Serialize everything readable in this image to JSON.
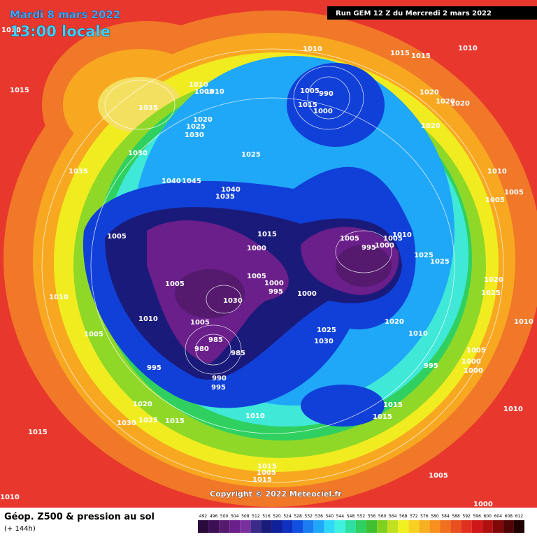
{
  "header": {
    "date": "Mardi 8 mars 2022",
    "time": "13:00 locale",
    "run": "Run GEM 12 Z du Mercredi 2 mars 2022"
  },
  "footer": {
    "title": "Géop. Z500 & pression au sol",
    "lead": "(+ 144h)",
    "copyright": "Copyright © 2022 Meteociel.fr"
  },
  "scale": {
    "labels": [
      492,
      496,
      500,
      504,
      508,
      512,
      516,
      520,
      524,
      528,
      532,
      536,
      540,
      544,
      548,
      552,
      556,
      560,
      564,
      568,
      572,
      576,
      580,
      584,
      588,
      592,
      596,
      600,
      604,
      608,
      612
    ],
    "colors": [
      "#2a0a3a",
      "#3c0f55",
      "#551a6e",
      "#6a1f8a",
      "#7a2f9e",
      "#3a2a8a",
      "#1a1a7a",
      "#10209a",
      "#1030c0",
      "#1050e0",
      "#1a7ef0",
      "#20a8f8",
      "#30d8f8",
      "#40f0e0",
      "#30e0a0",
      "#30d060",
      "#40c030",
      "#80d020",
      "#c0e020",
      "#f0f020",
      "#f8d020",
      "#f8b020",
      "#f89020",
      "#f07020",
      "#e85020",
      "#e03020",
      "#d01818",
      "#b01010",
      "#800808",
      "#500404",
      "#200000"
    ]
  },
  "isobars": [
    1010,
    1015,
    1035,
    1020,
    1025,
    1030,
    1010,
    1005,
    1010,
    1010,
    1015,
    1015,
    1010,
    990,
    1005,
    1015,
    1000,
    1020,
    1020,
    1020,
    1020,
    1030,
    1025,
    1035,
    1040,
    1045,
    1040,
    1035,
    1010,
    1005,
    1005,
    1015,
    1005,
    1000,
    1005,
    995,
    1000,
    1010,
    1005,
    1025,
    1025,
    1005,
    1000,
    995,
    1005,
    1000,
    1030,
    1010,
    1010,
    1005,
    1020,
    1010,
    1025,
    1030,
    1020,
    1025,
    1010,
    985,
    980,
    985,
    995,
    1005,
    1005,
    1000,
    1000,
    995,
    990,
    995,
    1020,
    1030,
    1025,
    1015,
    1015,
    1010,
    1015,
    1015,
    1010,
    1015,
    1005,
    1015,
    1005,
    1000,
    1010
  ]
}
